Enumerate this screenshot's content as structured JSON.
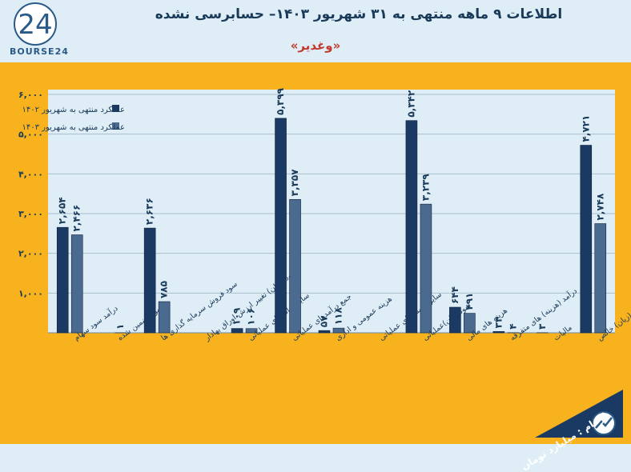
{
  "header": {
    "title": "اطلاعات ۹  ماهه منتهی به ۳۱ شهریور ۱۴۰۳– حسابرسی نشده",
    "subtitle": "«وغدیر»",
    "logo_text": "BOURSE24",
    "logo_mark": "24"
  },
  "badge": {
    "label": "ارقام : میلیارد تومان"
  },
  "colors": {
    "frame": "#f7b21e",
    "plot_bg": "#dfeef6",
    "series1": "#1b3a63",
    "series2": "#4a6a8f",
    "text": "#1a3a5a"
  },
  "chart_data": {
    "type": "bar",
    "title": "",
    "xlabel": "",
    "ylabel": "",
    "ylim": [
      0,
      6000
    ],
    "yticks": [
      0,
      1000,
      2000,
      3000,
      4000,
      5000,
      6000
    ],
    "ytick_labels": [
      "",
      "۱,۰۰۰",
      "۲,۰۰۰",
      "۳,۰۰۰",
      "۴,۰۰۰",
      "۵,۰۰۰",
      "۶,۰۰۰"
    ],
    "grid": true,
    "legend_position": "top-left",
    "categories": [
      "درآمد سود سهام",
      "سود تضمین شده",
      "سود فروش سرمایه گذاری ها",
      "سود (زیان) تغییر ارزش اوراق بهادار",
      "سایر درآمدهای عملیاتی",
      "جمع درآمدهای عملیاتی",
      "هزینه عمومی و اداری",
      "سایر هزینه های عملیاتی",
      "سود(زیان)عملیاتی",
      "هزینه های مالی",
      "درآمد (هزینه) های متفرقه",
      "مالیات",
      "سود(زیان) خالص"
    ],
    "series": [
      {
        "name": "عملکرد منتهی به شهریور ۱۴۰۲",
        "values": [
          2654,
          0,
          2636,
          0,
          109,
          5399,
          57,
          0,
          5342,
          644,
          33,
          3,
          4721
        ],
        "labels": [
          "۲,۶۵۴",
          "",
          "۲,۶۳۶",
          "",
          "۱۰۹",
          "۵,۳۹۹",
          "۵۷",
          "",
          "۵,۳۴۲",
          "۶۴۴",
          "۳۳",
          "۳",
          "۴,۷۲۱"
        ]
      },
      {
        "name": "عملکرد منتهی به شهریور ۱۴۰۳",
        "values": [
          2466,
          1,
          785,
          0,
          106,
          3357,
          118,
          0,
          3239,
          491,
          4,
          0,
          2748
        ],
        "labels": [
          "۲,۴۶۶",
          "۱",
          "۷۸۵",
          "",
          "۱۰۶",
          "۳,۳۵۷",
          "۱۱۸",
          "",
          "۳,۲۳۹",
          "۴۹۱",
          "۴",
          "",
          "۲,۷۴۸"
        ]
      }
    ]
  }
}
